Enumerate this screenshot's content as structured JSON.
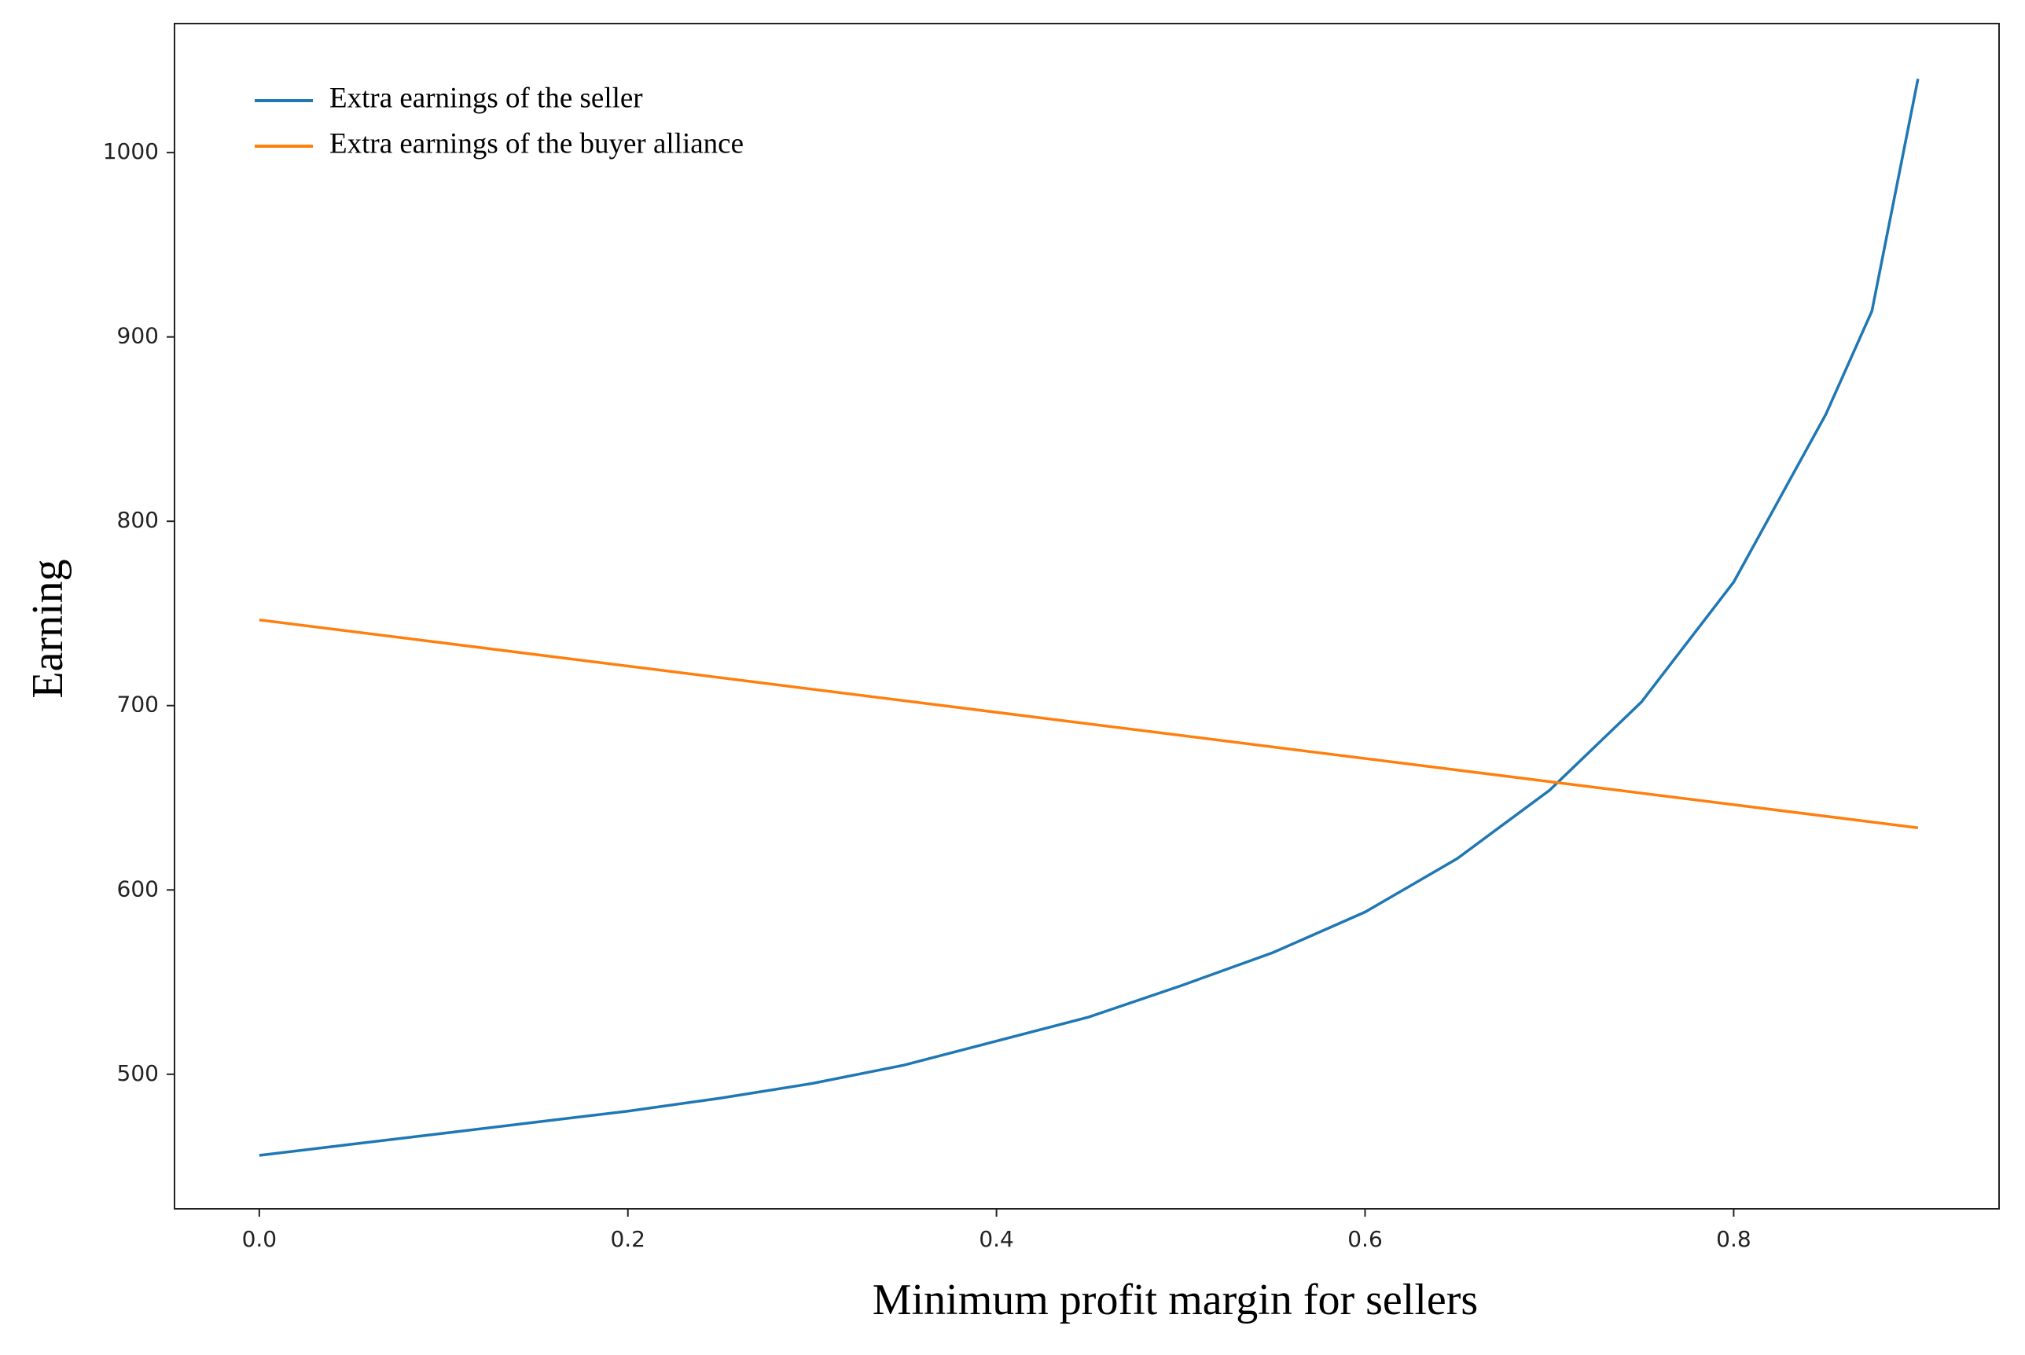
{
  "chart_data": {
    "type": "line",
    "xlabel": "Minimum profit margin for sellers",
    "ylabel": "Earning",
    "xlim": [
      -0.046,
      0.944
    ],
    "ylim": [
      427,
      1070
    ],
    "xticks": [
      {
        "value": 0,
        "label": "0.0"
      },
      0.2,
      0.4,
      0.6,
      0.8
    ],
    "yticks": [
      500,
      600,
      700,
      800,
      900,
      1000
    ],
    "legend": "upper left",
    "series": [
      {
        "name": "Extra earnings of the seller",
        "color": "#1f77b4",
        "x": [
          0,
          0.05,
          0.1,
          0.15,
          0.2,
          0.25,
          0.3,
          0.35,
          0.4,
          0.45,
          0.5,
          0.55,
          0.6,
          0.65,
          0.7,
          0.75,
          0.8,
          0.85,
          0.875,
          0.9
        ],
        "values": [
          456,
          462,
          468,
          474,
          480,
          487,
          495,
          505,
          518,
          531,
          548,
          566,
          588,
          617,
          654,
          702,
          767,
          858,
          914,
          1040
        ]
      },
      {
        "name": "Extra earnings of the buyer alliance",
        "color": "#ff7f0e",
        "x": [
          0,
          0.9
        ],
        "values": [
          746.5,
          633.7
        ]
      }
    ]
  }
}
